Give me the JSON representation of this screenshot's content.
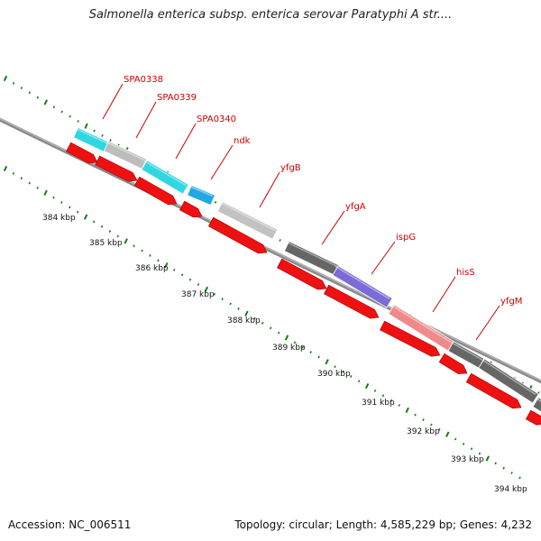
{
  "title": "Salmonella enterica subsp. enterica serovar Paratyphi A str....",
  "footer": {
    "accession": "Accession: NC_006511",
    "summary": "Topology: circular; Length: 4,585,229 bp; Genes: 4,232"
  },
  "colors": {
    "backbone": "#8a8a8a",
    "cds": "#ee1111",
    "label": "#cc0000",
    "tick": "#1a7a1a"
  },
  "genes": [
    {
      "label": "SPA0338",
      "color": "#2fd8e0"
    },
    {
      "label": "SPA0339",
      "color": "#bdbdbd"
    },
    {
      "label": "SPA0340",
      "color": "#2fd8e0"
    },
    {
      "label": "ndk",
      "color": "#22a6e6"
    },
    {
      "label": "yfgB",
      "color": "#c2c2c2"
    },
    {
      "label": "yfgA",
      "color": "#666666"
    },
    {
      "label": "ispG",
      "color": "#7b6bd6"
    },
    {
      "label": "hisS",
      "color": "#f08a8a"
    },
    {
      "label": "yfgM",
      "color": "#666666"
    }
  ],
  "scale": {
    "labels": [
      "384 kbp",
      "385 kbp",
      "386 kbp",
      "387 kbp",
      "388 kbp",
      "389 kbp",
      "390 kbp",
      "391 kbp",
      "392 kbp",
      "393 kbp",
      "394 kbp"
    ]
  }
}
